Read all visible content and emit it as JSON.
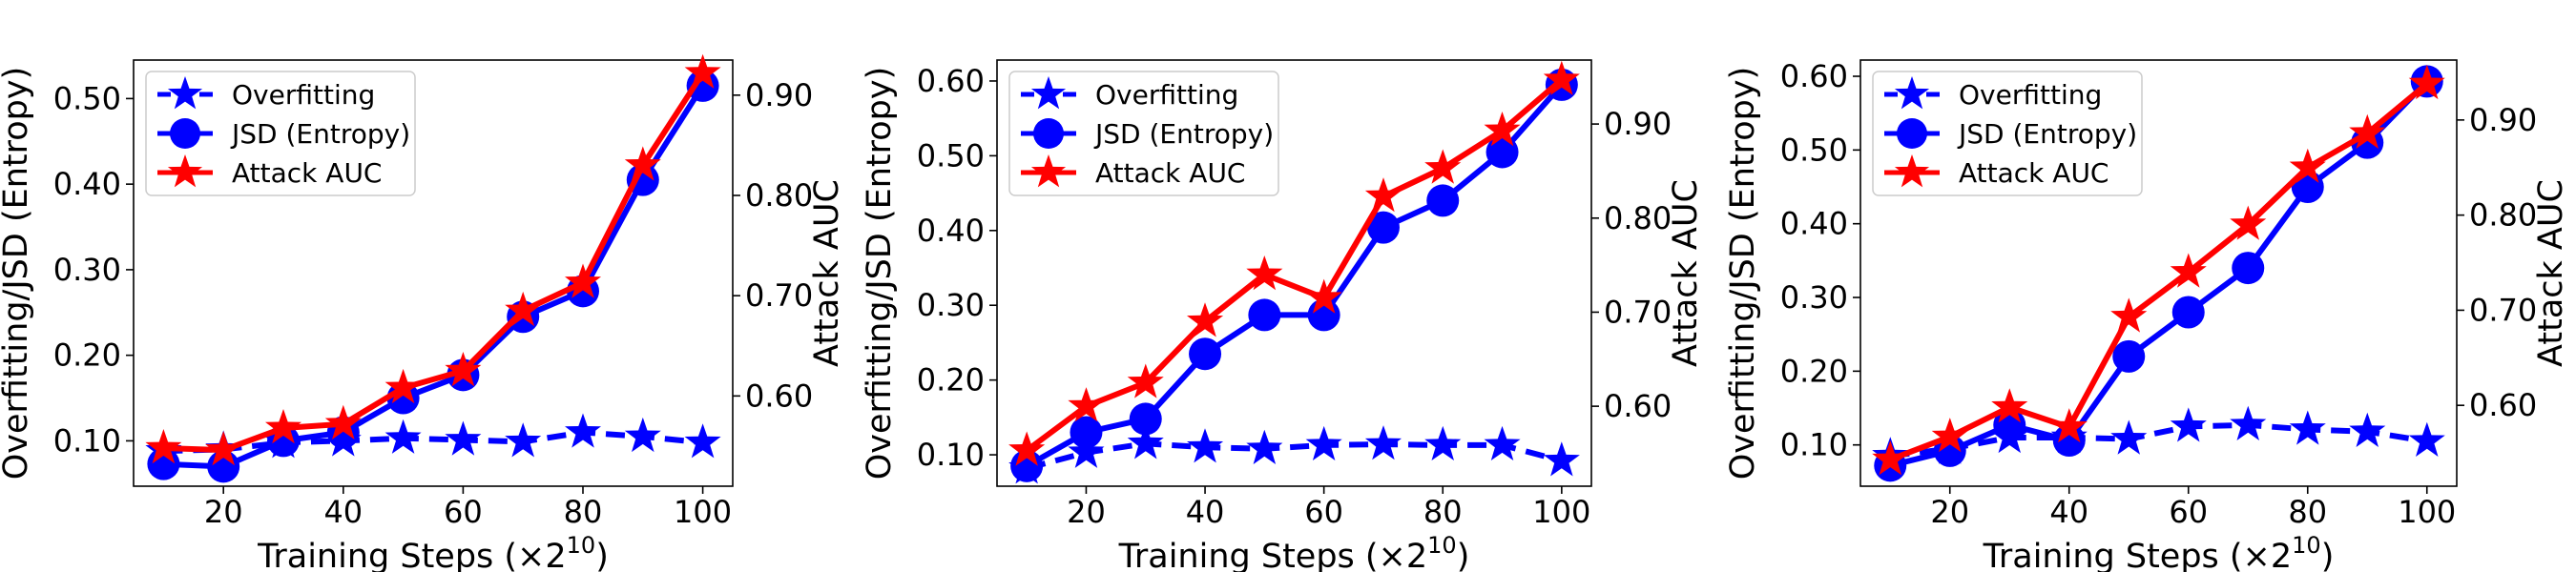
{
  "chart_data": [
    {
      "type": "line",
      "x": [
        10,
        20,
        30,
        40,
        50,
        60,
        70,
        80,
        90,
        100
      ],
      "xticks": [
        20,
        40,
        60,
        80,
        100
      ],
      "xlabel_main": "Training Steps (×2",
      "xlabel_sup": "10",
      "xlabel_end": ")",
      "xlim": [
        5,
        105
      ],
      "ylabel_left": "Overfitting/JSD (Entropy)",
      "ylim_left": [
        0.047,
        0.545
      ],
      "yticks_left": [
        "0.10",
        "0.20",
        "0.30",
        "0.40",
        "0.50"
      ],
      "ylabel_right": "Attack AUC",
      "ylim_right": [
        0.51,
        0.935
      ],
      "yticks_right": [
        "0.60",
        "0.70",
        "0.80",
        "0.90"
      ],
      "legend_position": "top-left",
      "series": [
        {
          "name": "Overfitting",
          "axis": "left",
          "style": "dashed",
          "marker": "star",
          "color": "#0000ff",
          "values": [
            0.088,
            0.09,
            0.098,
            0.1,
            0.103,
            0.101,
            0.099,
            0.11,
            0.105,
            0.098
          ]
        },
        {
          "name": "JSD (Entropy)",
          "axis": "left",
          "style": "solid",
          "marker": "circle",
          "color": "#0000ff",
          "values": [
            0.073,
            0.07,
            0.1,
            0.11,
            0.15,
            0.177,
            0.245,
            0.275,
            0.405,
            0.515
          ]
        },
        {
          "name": "Attack AUC",
          "axis": "right",
          "style": "solid",
          "marker": "star",
          "color": "#ff0000",
          "values": [
            0.548,
            0.546,
            0.568,
            0.572,
            0.608,
            0.625,
            0.685,
            0.713,
            0.83,
            0.922
          ]
        }
      ]
    },
    {
      "type": "line",
      "x": [
        10,
        20,
        30,
        40,
        50,
        60,
        70,
        80,
        90,
        100
      ],
      "xticks": [
        20,
        40,
        60,
        80,
        100
      ],
      "xlabel_main": "Training Steps (×2",
      "xlabel_sup": "10",
      "xlabel_end": ")",
      "xlim": [
        5,
        105
      ],
      "ylabel_left": "Overfitting/JSD (Entropy)",
      "ylim_left": [
        0.058,
        0.628
      ],
      "yticks_left": [
        "0.10",
        "0.20",
        "0.30",
        "0.40",
        "0.50",
        "0.60"
      ],
      "ylabel_right": "Attack AUC",
      "ylim_right": [
        0.515,
        0.968
      ],
      "yticks_right": [
        "0.60",
        "0.70",
        "0.80",
        "0.90"
      ],
      "legend_position": "top-left",
      "series": [
        {
          "name": "Overfitting",
          "axis": "left",
          "style": "dashed",
          "marker": "star",
          "color": "#0000ff",
          "values": [
            0.082,
            0.103,
            0.115,
            0.11,
            0.108,
            0.113,
            0.114,
            0.113,
            0.113,
            0.092
          ]
        },
        {
          "name": "JSD (Entropy)",
          "axis": "left",
          "style": "solid",
          "marker": "circle",
          "color": "#0000ff",
          "values": [
            0.085,
            0.13,
            0.148,
            0.235,
            0.287,
            0.287,
            0.404,
            0.44,
            0.505,
            0.595
          ]
        },
        {
          "name": "Attack AUC",
          "axis": "right",
          "style": "solid",
          "marker": "star",
          "color": "#ff0000",
          "values": [
            0.553,
            0.6,
            0.625,
            0.69,
            0.74,
            0.715,
            0.823,
            0.853,
            0.893,
            0.947
          ]
        }
      ]
    },
    {
      "type": "line",
      "x": [
        10,
        20,
        30,
        40,
        50,
        60,
        70,
        80,
        90,
        100
      ],
      "xticks": [
        20,
        40,
        60,
        80,
        100
      ],
      "xlabel_main": "Training Steps (×2",
      "xlabel_sup": "10",
      "xlabel_end": ")",
      "xlim": [
        5,
        105
      ],
      "ylabel_left": "Overfitting/JSD (Entropy)",
      "ylim_left": [
        0.044,
        0.622
      ],
      "yticks_left": [
        "0.10",
        "0.20",
        "0.30",
        "0.40",
        "0.50",
        "0.60"
      ],
      "ylabel_right": "Attack AUC",
      "ylim_right": [
        0.515,
        0.963
      ],
      "yticks_right": [
        "0.60",
        "0.70",
        "0.80",
        "0.90"
      ],
      "legend_position": "top-left",
      "series": [
        {
          "name": "Overfitting",
          "axis": "left",
          "style": "dashed",
          "marker": "star",
          "color": "#0000ff",
          "values": [
            0.085,
            0.095,
            0.11,
            0.11,
            0.108,
            0.125,
            0.127,
            0.121,
            0.118,
            0.105
          ]
        },
        {
          "name": "JSD (Entropy)",
          "axis": "left",
          "style": "solid",
          "marker": "circle",
          "color": "#0000ff",
          "values": [
            0.072,
            0.092,
            0.127,
            0.106,
            0.22,
            0.28,
            0.34,
            0.45,
            0.51,
            0.593
          ]
        },
        {
          "name": "Attack AUC",
          "axis": "right",
          "style": "solid",
          "marker": "star",
          "color": "#ff0000",
          "values": [
            0.543,
            0.567,
            0.598,
            0.577,
            0.693,
            0.74,
            0.79,
            0.85,
            0.886,
            0.938
          ]
        }
      ]
    }
  ]
}
